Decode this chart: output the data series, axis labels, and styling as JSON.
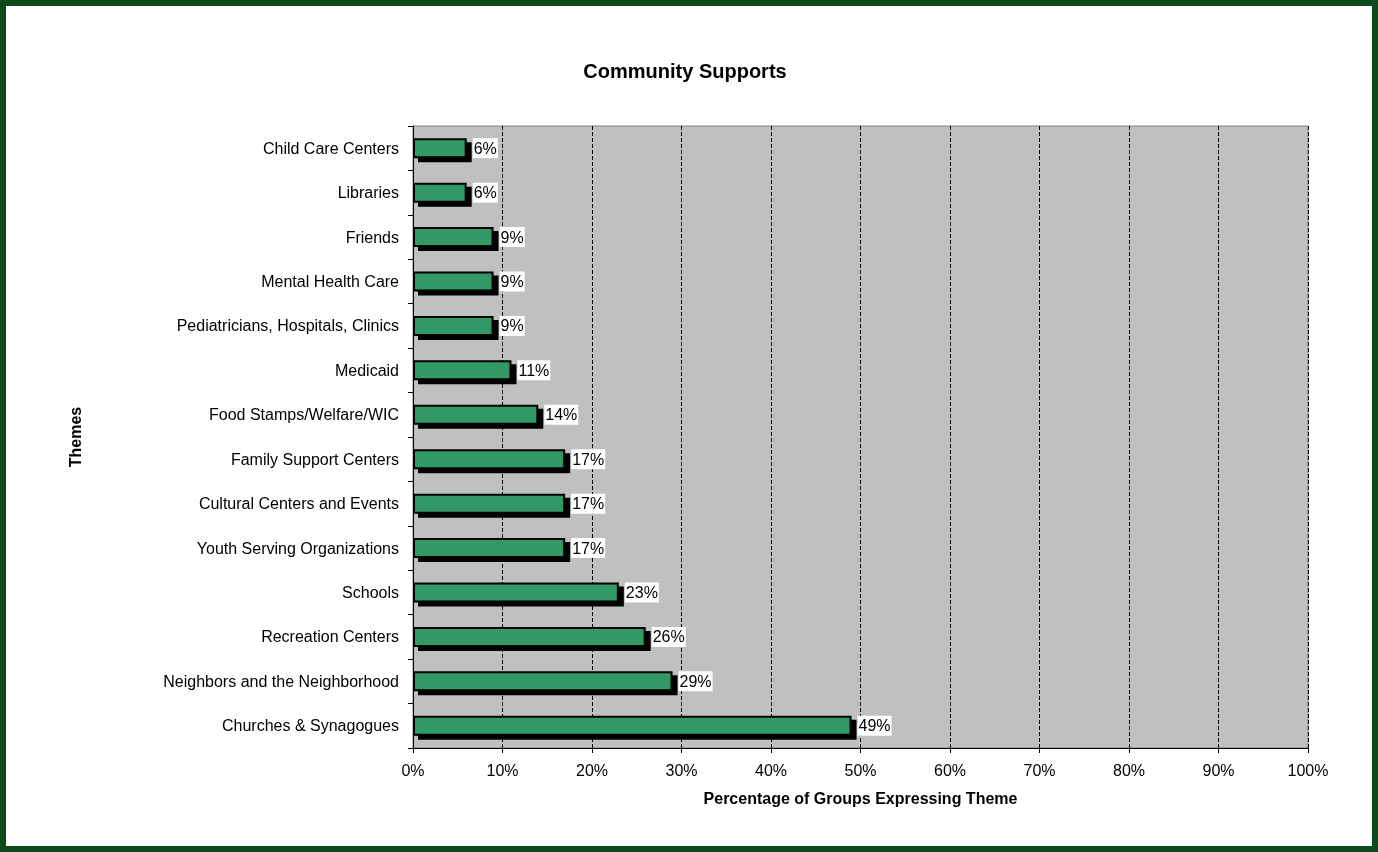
{
  "chart_data": {
    "type": "bar",
    "orientation": "horizontal",
    "title": "Community Supports",
    "xlabel": "Percentage of Groups Expressing Theme",
    "ylabel": "Themes",
    "categories": [
      "Child Care Centers",
      "Libraries",
      "Friends",
      "Mental Health Care",
      "Pediatricians, Hospitals, Clinics",
      "Medicaid",
      "Food Stamps/Welfare/WIC",
      "Family Support Centers",
      "Cultural Centers and Events",
      "Youth Serving Organizations",
      "Schools",
      "Recreation Centers",
      "Neighbors and the Neighborhood",
      "Churches & Synagogues"
    ],
    "values": [
      6,
      6,
      9,
      9,
      9,
      11,
      14,
      17,
      17,
      17,
      23,
      26,
      29,
      49
    ],
    "value_labels": [
      "6%",
      "6%",
      "9%",
      "9%",
      "9%",
      "11%",
      "14%",
      "17%",
      "17%",
      "17%",
      "23%",
      "26%",
      "29%",
      "49%"
    ],
    "color": "#339966",
    "xlim": [
      0,
      100
    ],
    "xticks": [
      {
        "value": 0,
        "label": "0%"
      },
      {
        "value": 10,
        "label": "10%"
      },
      {
        "value": 20,
        "label": "20%"
      },
      {
        "value": 30,
        "label": "30%"
      },
      {
        "value": 40,
        "label": "40%"
      },
      {
        "value": 50,
        "label": "50%"
      },
      {
        "value": 60,
        "label": "60%"
      },
      {
        "value": 70,
        "label": "70%"
      },
      {
        "value": 80,
        "label": "80%"
      },
      {
        "value": 90,
        "label": "90%"
      },
      {
        "value": 100,
        "label": "100%"
      }
    ],
    "grid": "x"
  }
}
